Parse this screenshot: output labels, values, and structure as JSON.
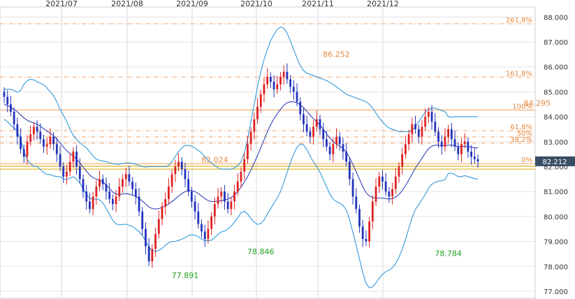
{
  "chart_data": {
    "type": "candlestick",
    "title": "",
    "x_labels": [
      "2021/07",
      "2021/08",
      "2021/09",
      "2021/10",
      "2021/11",
      "2021/12"
    ],
    "y_ticks": [
      "88.000",
      "87.000",
      "86.000",
      "85.000",
      "84.000",
      "83.000",
      "82.000",
      "81.000",
      "80.000",
      "79.000",
      "78.000",
      "77.000"
    ],
    "ylim": [
      77.0,
      88.25
    ],
    "current_price": "82.212",
    "fibonacci": [
      {
        "label": "261.8%",
        "value": 87.73
      },
      {
        "label": "161.8%",
        "value": 85.59
      },
      {
        "label": "100%",
        "value": 84.27
      },
      {
        "label": "61.8%",
        "value": 83.44
      },
      {
        "label": "50%",
        "value": 83.19
      },
      {
        "label": "38.2%",
        "value": 82.94
      },
      {
        "label": "0%",
        "value": 82.12
      }
    ],
    "support_lines": [
      82.02,
      81.9
    ],
    "annotations": [
      {
        "text": "86.252",
        "kind": "high",
        "x": 101,
        "y": 86.252
      },
      {
        "text": "84.295",
        "kind": "high",
        "x": 162,
        "y": 84.295
      },
      {
        "text": "82.024",
        "kind": "high",
        "x": 64,
        "y": 82.024
      },
      {
        "text": "77.891",
        "kind": "low",
        "x": 55,
        "y": 77.891
      },
      {
        "text": "78.846",
        "kind": "low",
        "x": 78,
        "y": 78.846
      },
      {
        "text": "78.784",
        "kind": "low",
        "x": 135,
        "y": 78.784
      }
    ],
    "close": [
      84.8,
      84.5,
      84.2,
      83.7,
      83.2,
      82.7,
      82.4,
      83.0,
      83.3,
      83.6,
      83.4,
      83.1,
      82.8,
      82.9,
      83.2,
      82.9,
      82.5,
      82.0,
      81.6,
      81.8,
      82.2,
      82.6,
      82.0,
      81.5,
      81.0,
      80.6,
      80.3,
      80.8,
      81.2,
      81.5,
      81.3,
      81.0,
      80.7,
      80.5,
      80.8,
      81.2,
      81.5,
      81.7,
      81.4,
      81.1,
      80.8,
      80.2,
      79.5,
      78.8,
      78.2,
      78.7,
      79.3,
      79.9,
      80.4,
      80.7,
      81.2,
      81.7,
      82.0,
      82.2,
      81.9,
      81.5,
      81.0,
      80.6,
      80.2,
      79.7,
      79.4,
      79.1,
      79.5,
      80.0,
      80.5,
      80.8,
      81.0,
      80.6,
      80.3,
      80.6,
      81.0,
      81.4,
      81.8,
      82.3,
      82.9,
      83.4,
      83.9,
      84.4,
      84.9,
      85.3,
      85.6,
      85.4,
      85.1,
      85.3,
      85.6,
      85.8,
      85.5,
      85.2,
      85.0,
      84.6,
      84.1,
      83.7,
      83.4,
      83.2,
      83.6,
      83.9,
      83.5,
      83.1,
      82.8,
      82.5,
      82.9,
      83.2,
      82.9,
      82.6,
      82.2,
      81.5,
      80.8,
      80.3,
      79.6,
      79.1,
      79.0,
      79.8,
      80.6,
      81.2,
      81.6,
      81.4,
      81.0,
      80.8,
      81.1,
      81.6,
      82.0,
      82.5,
      82.9,
      83.3,
      83.7,
      83.5,
      83.2,
      83.6,
      84.0,
      84.2,
      83.8,
      83.4,
      83.0,
      82.8,
      83.2,
      83.5,
      83.1,
      82.8,
      82.5,
      82.9,
      83.0,
      82.6,
      82.4,
      82.3,
      82.21
    ],
    "series": [
      {
        "name": "",
        "kind": "sma",
        "values": [
          84.5,
          84.45,
          84.38,
          84.3,
          84.2,
          84.08,
          83.95,
          83.86,
          83.8,
          83.75,
          83.7,
          83.62,
          83.52,
          83.42,
          83.34,
          83.24,
          83.1,
          82.95,
          82.78,
          82.64,
          82.52,
          82.42,
          82.3,
          82.15,
          81.98,
          81.82,
          81.66,
          81.56,
          81.5,
          81.46,
          81.38,
          81.26,
          81.12,
          80.98,
          80.9,
          80.88,
          80.9,
          80.92,
          80.9,
          80.86,
          80.8,
          80.72,
          80.62,
          80.5,
          80.38,
          80.32,
          80.3,
          80.32,
          80.36,
          80.42,
          80.5,
          80.6,
          80.7,
          80.82,
          80.92,
          81.0,
          81.04,
          81.04,
          81.0,
          80.92,
          80.82,
          80.72,
          80.64,
          80.6,
          80.6,
          80.62,
          80.64,
          80.66,
          80.7,
          80.76,
          80.86,
          81.0,
          81.18,
          81.38,
          81.6,
          81.86,
          82.14,
          82.44,
          82.76,
          83.08,
          83.4,
          83.68,
          83.92,
          84.12,
          84.3,
          84.46,
          84.56,
          84.6,
          84.6,
          84.56,
          84.48,
          84.36,
          84.22,
          84.06,
          83.92,
          83.8,
          83.66,
          83.5,
          83.32,
          83.14,
          83.0,
          82.9,
          82.82,
          82.72,
          82.58,
          82.36,
          82.08,
          81.8,
          81.5,
          81.2,
          80.96,
          80.82,
          80.76,
          80.74,
          80.74,
          80.74,
          80.72,
          80.7,
          80.72,
          80.78,
          80.88,
          81.04,
          81.24,
          81.46,
          81.7,
          81.94,
          82.14,
          82.34,
          82.54,
          82.72,
          82.82,
          82.86,
          82.86,
          82.84,
          82.84,
          82.86,
          82.86,
          82.84,
          82.8,
          82.8,
          82.82,
          82.8,
          82.78,
          82.76,
          82.75
        ]
      },
      {
        "name": "",
        "kind": "band_upper",
        "values": [
          85.1,
          85.1,
          85.1,
          85.05,
          84.98,
          85.05,
          85.3,
          85.45,
          85.5,
          85.48,
          85.4,
          85.35,
          85.28,
          85.15,
          85.0,
          84.85,
          84.6,
          84.3,
          84.05,
          83.8,
          83.5,
          83.25,
          83.1,
          82.95,
          82.85,
          82.75,
          82.6,
          82.42,
          82.3,
          82.25,
          82.22,
          82.2,
          82.15,
          82.12,
          82.1,
          82.1,
          82.12,
          82.15,
          82.15,
          82.12,
          82.1,
          82.05,
          82.0,
          81.98,
          82.0,
          82.0,
          82.0,
          82.0,
          82.0,
          82.0,
          82.05,
          82.2,
          82.4,
          82.6,
          82.75,
          82.85,
          82.85,
          82.82,
          82.75,
          82.65,
          82.55,
          82.4,
          82.25,
          82.15,
          82.05,
          81.95,
          81.9,
          81.9,
          81.9,
          81.9,
          81.95,
          82.05,
          82.2,
          82.55,
          83.1,
          83.8,
          84.5,
          85.2,
          85.8,
          86.3,
          86.7,
          87.05,
          87.3,
          87.5,
          87.6,
          87.55,
          87.35,
          87.05,
          86.7,
          86.35,
          86.05,
          85.85,
          85.75,
          85.7,
          85.65,
          85.6,
          85.55,
          85.5,
          85.45,
          85.38,
          85.3,
          85.2,
          85.1,
          85.0,
          84.9,
          84.85,
          84.8,
          84.75,
          84.7,
          84.65,
          84.6,
          84.5,
          84.35,
          84.15,
          83.95,
          83.8,
          83.65,
          83.55,
          83.5,
          83.45,
          83.4,
          83.4,
          83.4,
          83.4,
          83.45,
          83.6,
          83.8,
          84.0,
          84.2,
          84.3,
          84.35,
          84.35,
          84.3,
          84.25,
          84.2,
          84.0,
          83.98,
          84.0,
          84.0,
          84.0,
          84.0,
          84.0,
          84.0,
          84.0,
          84.0
        ]
      },
      {
        "name": "",
        "kind": "band_lower",
        "values": [
          83.9,
          83.8,
          83.66,
          83.55,
          83.42,
          83.11,
          82.6,
          82.27,
          82.1,
          82.02,
          82.0,
          81.89,
          81.76,
          81.69,
          81.68,
          81.63,
          81.6,
          81.6,
          81.51,
          81.48,
          81.54,
          81.59,
          81.5,
          81.35,
          81.11,
          80.89,
          80.72,
          80.7,
          80.7,
          80.67,
          80.54,
          80.32,
          80.09,
          79.84,
          79.7,
          79.66,
          79.68,
          79.69,
          79.65,
          79.6,
          79.5,
          79.39,
          79.24,
          79.02,
          78.76,
          78.64,
          78.6,
          78.64,
          78.72,
          78.84,
          78.95,
          79.0,
          79.0,
          79.04,
          79.09,
          79.15,
          79.23,
          79.26,
          79.25,
          79.19,
          79.09,
          79.04,
          79.03,
          79.05,
          79.15,
          79.29,
          79.38,
          79.42,
          79.5,
          79.62,
          79.77,
          79.95,
          80.16,
          80.21,
          80.1,
          79.92,
          79.78,
          79.68,
          79.72,
          79.86,
          80.1,
          80.31,
          80.54,
          80.74,
          81.0,
          81.37,
          81.77,
          82.15,
          82.5,
          82.77,
          82.91,
          82.87,
          82.69,
          82.42,
          82.19,
          82.0,
          81.77,
          81.5,
          81.19,
          80.9,
          80.7,
          80.6,
          80.54,
          80.44,
          80.26,
          79.87,
          79.36,
          78.85,
          78.3,
          77.75,
          77.32,
          77.14,
          77.17,
          77.33,
          77.53,
          77.68,
          77.79,
          77.85,
          77.94,
          78.11,
          78.36,
          78.68,
          79.08,
          79.52,
          79.95,
          80.28,
          80.48,
          80.68,
          80.88,
          81.14,
          81.29,
          81.37,
          81.42,
          81.43,
          81.48,
          81.72,
          81.74,
          81.68,
          81.6,
          81.6,
          81.64,
          81.6,
          81.56,
          81.52,
          81.5
        ]
      }
    ],
    "grid": true,
    "legend": "none"
  }
}
